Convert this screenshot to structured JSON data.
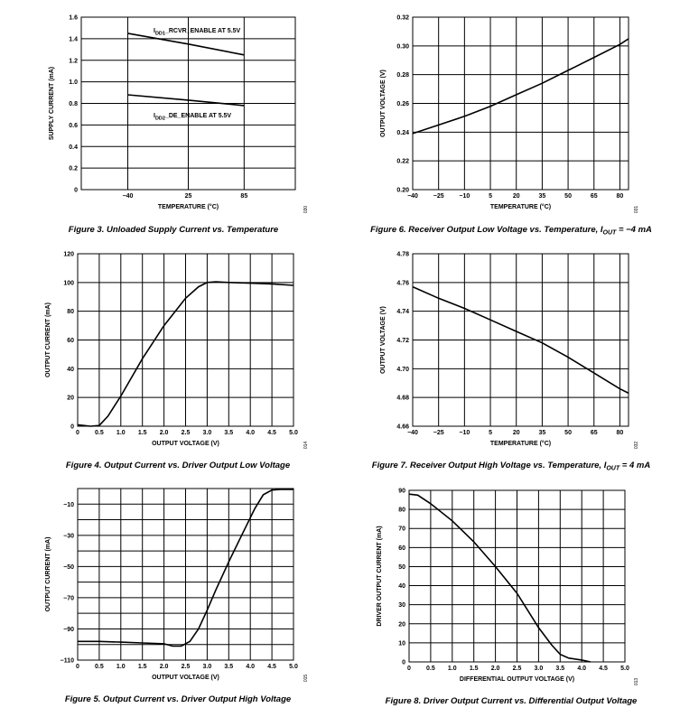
{
  "chart_data": [
    {
      "id": "fig3",
      "type": "line",
      "caption": "Figure 3. Unloaded Supply Current vs. Temperature",
      "xlabel": "TEMPERATURE (°C)",
      "ylabel": "SUPPLY CURRENT (mA)",
      "xlim": [
        -90,
        140
      ],
      "ylim": [
        0,
        1.6
      ],
      "xticks": [
        -40,
        25,
        85
      ],
      "xtick_labels": [
        "−40",
        "25",
        "85"
      ],
      "xgrid": [
        -90,
        -40,
        25,
        85,
        140
      ],
      "yticks": [
        0,
        0.2,
        0.4,
        0.6,
        0.8,
        1.0,
        1.2,
        1.4,
        1.6
      ],
      "ytick_labels": [
        "0",
        "0.2",
        "0.4",
        "0.6",
        "0.8",
        "1.0",
        "1.2",
        "1.4",
        "1.6"
      ],
      "code": "030",
      "series": [
        {
          "name": "IDD1_RCVR_ENABLE AT 5.5V",
          "name_main": "I",
          "name_sub": "DD1",
          "name_rest": "_RCVR_ENABLE AT 5.5V",
          "x": [
            -40,
            25,
            85
          ],
          "y": [
            1.45,
            1.35,
            1.25
          ]
        },
        {
          "name": "IDD2_DE_ENABLE AT 5.5V",
          "name_main": "I",
          "name_sub": "DD2",
          "name_rest": "_DE_ENABLE AT 5.5V",
          "x": [
            -40,
            25,
            85
          ],
          "y": [
            0.88,
            0.83,
            0.78
          ]
        }
      ]
    },
    {
      "id": "fig6",
      "type": "line",
      "caption": "Figure 6. Receiver Output Low Voltage vs. Temperature, IOUT = −4 mA",
      "caption_main": "Figure 6. Receiver Output Low Voltage vs. Temperature, I",
      "caption_sub": "OUT",
      "caption_rest": " = −4 mA",
      "xlabel": "TEMPERATURE (°C)",
      "ylabel": "OUTPUT VOLTAGE (V)",
      "xlim": [
        -40,
        85
      ],
      "ylim": [
        0.2,
        0.32
      ],
      "xticks": [
        -40,
        -25,
        -10,
        5,
        20,
        35,
        50,
        65,
        80
      ],
      "xtick_labels": [
        "−40",
        "−25",
        "−10",
        "5",
        "20",
        "35",
        "50",
        "65",
        "80"
      ],
      "yticks": [
        0.2,
        0.22,
        0.24,
        0.26,
        0.28,
        0.3,
        0.32
      ],
      "ytick_labels": [
        "0.20",
        "0.22",
        "0.24",
        "0.26",
        "0.28",
        "0.30",
        "0.32"
      ],
      "code": "031",
      "series": [
        {
          "x": [
            -40,
            -25,
            -10,
            5,
            20,
            35,
            50,
            65,
            80,
            85
          ],
          "y": [
            0.239,
            0.245,
            0.251,
            0.258,
            0.266,
            0.274,
            0.283,
            0.292,
            0.301,
            0.305
          ]
        }
      ]
    },
    {
      "id": "fig4",
      "type": "line",
      "caption": "Figure 4. Output Current vs. Driver Output Low Voltage",
      "xlabel": "OUTPUT VOLTAGE (V)",
      "ylabel": "OUTPUT CURRENT (mA)",
      "xlim": [
        0,
        5
      ],
      "ylim": [
        0,
        120
      ],
      "xticks": [
        0,
        0.5,
        1.0,
        1.5,
        2.0,
        2.5,
        3.0,
        3.5,
        4.0,
        4.5,
        5.0
      ],
      "xtick_labels": [
        "0",
        "0.5",
        "1.0",
        "1.5",
        "2.0",
        "2.5",
        "3.0",
        "3.5",
        "4.0",
        "4.5",
        "5.0"
      ],
      "yticks": [
        0,
        20,
        40,
        60,
        80,
        100,
        120
      ],
      "ytick_labels": [
        "0",
        "20",
        "40",
        "60",
        "80",
        "100",
        "120"
      ],
      "code": "014",
      "series": [
        {
          "x": [
            0,
            0.3,
            0.5,
            0.7,
            1.0,
            1.5,
            2.0,
            2.5,
            2.8,
            3.0,
            3.2,
            3.5,
            4.0,
            4.5,
            5.0
          ],
          "y": [
            1,
            0,
            0.5,
            7,
            21,
            47,
            70,
            89,
            97,
            100,
            100.5,
            100,
            99.5,
            99,
            98
          ]
        }
      ]
    },
    {
      "id": "fig7",
      "type": "line",
      "caption": "Figure 7. Receiver Output High Voltage vs. Temperature, IOUT = 4 mA",
      "caption_main": "Figure 7. Receiver Output High Voltage vs. Temperature, I",
      "caption_sub": "OUT",
      "caption_rest": " = 4 mA",
      "xlabel": "TEMPERATURE (°C)",
      "ylabel": "OUTPUT VOLTAGE (V)",
      "xlim": [
        -40,
        85
      ],
      "ylim": [
        4.66,
        4.78
      ],
      "xticks": [
        -40,
        -25,
        -10,
        5,
        20,
        35,
        50,
        65,
        80
      ],
      "xtick_labels": [
        "−40",
        "−25",
        "−10",
        "5",
        "20",
        "35",
        "50",
        "65",
        "80"
      ],
      "yticks": [
        4.66,
        4.68,
        4.7,
        4.72,
        4.74,
        4.76,
        4.78
      ],
      "ytick_labels": [
        "4.66",
        "4.68",
        "4.70",
        "4.72",
        "4.74",
        "4.76",
        "4.78"
      ],
      "code": "032",
      "series": [
        {
          "x": [
            -40,
            -25,
            -10,
            5,
            20,
            35,
            50,
            65,
            80,
            85
          ],
          "y": [
            4.757,
            4.749,
            4.742,
            4.734,
            4.726,
            4.718,
            4.708,
            4.697,
            4.686,
            4.683
          ]
        }
      ]
    },
    {
      "id": "fig5",
      "type": "line",
      "caption": "Figure 5. Output Current vs. Driver Output High Voltage",
      "xlabel": "OUTPUT VOLTAGE (V)",
      "ylabel": "OUTPUT CURRENT (mA)",
      "xlim": [
        0,
        5
      ],
      "ylim": [
        -110,
        0
      ],
      "xticks": [
        0,
        0.5,
        1.0,
        1.5,
        2.0,
        2.5,
        3.0,
        3.5,
        4.0,
        4.5,
        5.0
      ],
      "xtick_labels": [
        "0",
        "0.5",
        "1.0",
        "1.5",
        "2.0",
        "2.5",
        "3.0",
        "3.5",
        "4.0",
        "4.5",
        "5.0"
      ],
      "yticks": [
        -110,
        -90,
        -70,
        -50,
        -30,
        -10
      ],
      "ytick_labels": [
        "−110",
        "−90",
        "−70",
        "−50",
        "−30",
        "−10"
      ],
      "ygrid": [
        -110,
        -100,
        -90,
        -80,
        -70,
        -60,
        -50,
        -40,
        -30,
        -20,
        -10,
        0
      ],
      "code": "015",
      "series": [
        {
          "x": [
            0,
            0.5,
            1.0,
            1.5,
            2.0,
            2.2,
            2.4,
            2.6,
            2.8,
            3.0,
            3.2,
            3.5,
            3.8,
            4.1,
            4.3,
            4.5,
            4.7,
            5.0
          ],
          "y": [
            -98,
            -98,
            -98.5,
            -99,
            -99.5,
            -101,
            -101,
            -98,
            -90,
            -78,
            -65,
            -47,
            -30,
            -13,
            -4,
            -1,
            -0.5,
            -0.5
          ]
        }
      ]
    },
    {
      "id": "fig8",
      "type": "line",
      "caption": "Figure 8. Driver Output Current vs. Differential Output Voltage",
      "xlabel": "DIFFERENTIAL OUTPUT VOLTAGE (V)",
      "ylabel": "DRIVER OUTPUT CURRENT (mA)",
      "xlim": [
        0,
        5
      ],
      "ylim": [
        0,
        90
      ],
      "xticks": [
        0,
        0.5,
        1.0,
        1.5,
        2.0,
        2.5,
        3.0,
        3.5,
        4.0,
        4.5,
        5.0
      ],
      "xtick_labels": [
        "0",
        "0.5",
        "1.0",
        "1.5",
        "2.0",
        "2.5",
        "3.0",
        "3.5",
        "4.0",
        "4.5",
        "5.0"
      ],
      "yticks": [
        0,
        10,
        20,
        30,
        40,
        50,
        60,
        70,
        80,
        90
      ],
      "ytick_labels": [
        "0",
        "10",
        "20",
        "30",
        "40",
        "50",
        "60",
        "70",
        "80",
        "90"
      ],
      "code": "013",
      "series": [
        {
          "x": [
            0,
            0.2,
            0.5,
            1.0,
            1.5,
            2.0,
            2.5,
            3.0,
            3.3,
            3.5,
            3.7,
            4.0,
            4.2
          ],
          "y": [
            88,
            87.5,
            83,
            74,
            63,
            50,
            36,
            18,
            9,
            4,
            2,
            1,
            0
          ]
        }
      ]
    }
  ]
}
